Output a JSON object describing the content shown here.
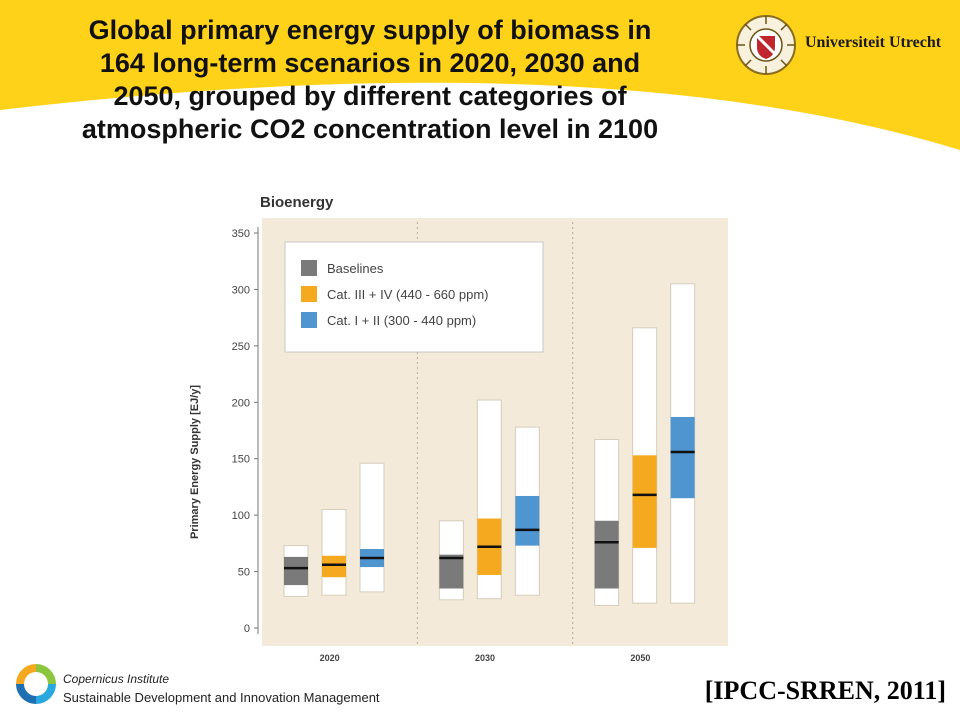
{
  "slide": {
    "title": "Global primary energy supply of biomass in\n164 long-term scenarios in 2020, 2030 and\n2050, grouped by different categories of\natmospheric CO2 concentration level in 2100",
    "banner_color": "#ffd21a",
    "logo_text": "Universiteit Utrecht",
    "footer_org": "Copernicus Institute",
    "footer_dept": "Sustainable Development and Innovation Management",
    "citation": "[IPCC-SRREN, 2011]"
  },
  "chart_data": {
    "type": "bar",
    "title": "Bioenergy",
    "ylabel": "Primary Energy Supply [EJ/y]",
    "xlabel": "",
    "ylim": [
      0,
      350
    ],
    "yticks": [
      0,
      50,
      100,
      150,
      200,
      250,
      300,
      350
    ],
    "grid": false,
    "legend_position": "top-left",
    "background_color": "#f3ead9",
    "categories": [
      "2020",
      "2030",
      "2050"
    ],
    "series": [
      {
        "name": "Baselines",
        "color": "#7a7a7a",
        "values": [
          {
            "min": 28,
            "p25": 38,
            "median": 53,
            "p75": 63,
            "max": 73
          },
          {
            "min": 25,
            "p25": 35,
            "median": 62,
            "p75": 65,
            "max": 95
          },
          {
            "min": 20,
            "p25": 35,
            "median": 76,
            "p75": 95,
            "max": 167
          }
        ]
      },
      {
        "name": "Cat. III + IV (440 - 660 ppm)",
        "color": "#f5a91e",
        "values": [
          {
            "min": 29,
            "p25": 45,
            "median": 56,
            "p75": 64,
            "max": 105
          },
          {
            "min": 26,
            "p25": 47,
            "median": 72,
            "p75": 97,
            "max": 202
          },
          {
            "min": 22,
            "p25": 71,
            "median": 118,
            "p75": 153,
            "max": 266
          }
        ]
      },
      {
        "name": "Cat. I + II (300 - 440 ppm)",
        "color": "#4f95d0",
        "values": [
          {
            "min": 32,
            "p25": 54,
            "median": 62,
            "p75": 70,
            "max": 146
          },
          {
            "min": 29,
            "p25": 73,
            "median": 87,
            "p75": 117,
            "max": 178
          },
          {
            "min": 22,
            "p25": 115,
            "median": 156,
            "p75": 187,
            "max": 305
          }
        ]
      }
    ]
  }
}
